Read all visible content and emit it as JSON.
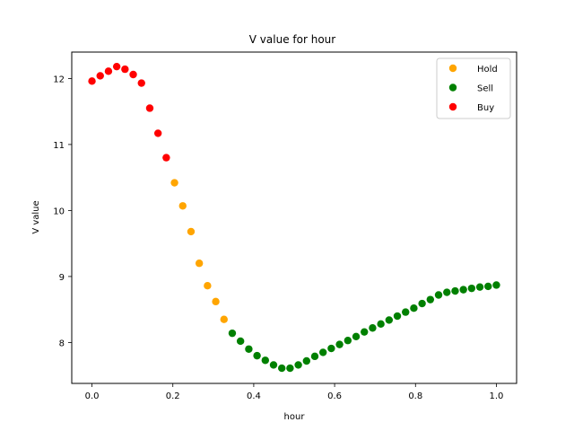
{
  "chart_data": {
    "type": "scatter",
    "title": "V value for hour",
    "xlabel": "hour",
    "ylabel": "V value",
    "xlim": [
      -0.05,
      1.05
    ],
    "ylim": [
      7.38,
      12.4
    ],
    "xticks": [
      0.0,
      0.2,
      0.4,
      0.6,
      0.8,
      1.0
    ],
    "xtick_labels": [
      "0.0",
      "0.2",
      "0.4",
      "0.6",
      "0.8",
      "1.0"
    ],
    "yticks": [
      8,
      9,
      10,
      11,
      12
    ],
    "ytick_labels": [
      "8",
      "9",
      "10",
      "11",
      "12"
    ],
    "grid": false,
    "legend_position": "top-right",
    "series": [
      {
        "name": "Hold",
        "color": "#ffa500",
        "points": [
          [
            0.2041,
            10.42
          ],
          [
            0.2245,
            10.07
          ],
          [
            0.2449,
            9.68
          ],
          [
            0.2653,
            9.2
          ],
          [
            0.2857,
            8.86
          ],
          [
            0.3061,
            8.62
          ],
          [
            0.3265,
            8.35
          ]
        ]
      },
      {
        "name": "Sell",
        "color": "#008000",
        "points": [
          [
            0.3469,
            8.14
          ],
          [
            0.3673,
            8.02
          ],
          [
            0.3878,
            7.9
          ],
          [
            0.4082,
            7.8
          ],
          [
            0.4286,
            7.73
          ],
          [
            0.449,
            7.66
          ],
          [
            0.4694,
            7.61
          ],
          [
            0.4898,
            7.61
          ],
          [
            0.5102,
            7.66
          ],
          [
            0.5306,
            7.72
          ],
          [
            0.551,
            7.79
          ],
          [
            0.5714,
            7.85
          ],
          [
            0.5918,
            7.91
          ],
          [
            0.6122,
            7.97
          ],
          [
            0.6327,
            8.03
          ],
          [
            0.6531,
            8.09
          ],
          [
            0.6735,
            8.16
          ],
          [
            0.6939,
            8.22
          ],
          [
            0.7143,
            8.28
          ],
          [
            0.7347,
            8.34
          ],
          [
            0.7551,
            8.4
          ],
          [
            0.7755,
            8.46
          ],
          [
            0.7959,
            8.52
          ],
          [
            0.8163,
            8.59
          ],
          [
            0.8367,
            8.65
          ],
          [
            0.8571,
            8.72
          ],
          [
            0.8776,
            8.76
          ],
          [
            0.898,
            8.78
          ],
          [
            0.9184,
            8.8
          ],
          [
            0.9388,
            8.82
          ],
          [
            0.9592,
            8.84
          ],
          [
            0.9796,
            8.85
          ],
          [
            1.0,
            8.87
          ]
        ]
      },
      {
        "name": "Buy",
        "color": "#ff0000",
        "points": [
          [
            0.0,
            11.96
          ],
          [
            0.0204,
            12.04
          ],
          [
            0.0408,
            12.11
          ],
          [
            0.0612,
            12.18
          ],
          [
            0.0816,
            12.14
          ],
          [
            0.102,
            12.06
          ],
          [
            0.1224,
            11.93
          ],
          [
            0.1429,
            11.55
          ],
          [
            0.1633,
            11.17
          ],
          [
            0.1837,
            10.8
          ]
        ]
      }
    ]
  }
}
